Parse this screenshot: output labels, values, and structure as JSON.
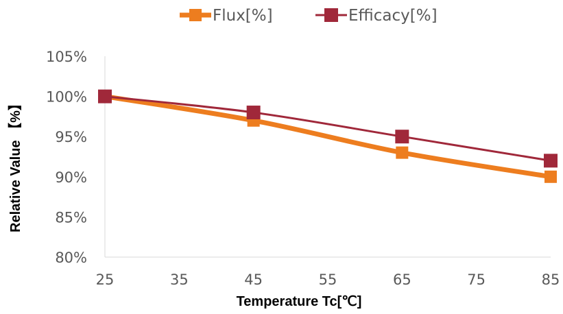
{
  "chart_data": {
    "type": "line",
    "title": "",
    "xlabel": "Temperature Tc[℃]",
    "ylabel": "Relative Value 【%】",
    "xlim": [
      25,
      85
    ],
    "ylim": [
      80,
      105
    ],
    "x_ticks": [
      25,
      35,
      45,
      55,
      65,
      75,
      85
    ],
    "x_tick_labels": [
      "25",
      "35",
      "45",
      "55",
      "65",
      "75",
      "85"
    ],
    "y_ticks": [
      80,
      85,
      90,
      95,
      100,
      105
    ],
    "y_tick_labels": [
      "80%",
      "85%",
      "90%",
      "95%",
      "100%",
      "105%"
    ],
    "grid": false,
    "legend_position": "top-center",
    "series": [
      {
        "name": "Flux[%]",
        "color": "#ED7D1F",
        "marker": "square",
        "x": [
          25,
          45,
          65,
          85
        ],
        "values": [
          100,
          97,
          93,
          90
        ]
      },
      {
        "name": "Efficacy[%]",
        "color": "#A0283A",
        "marker": "square",
        "x": [
          25,
          45,
          65,
          85
        ],
        "values": [
          100,
          98,
          95,
          92
        ]
      }
    ]
  }
}
